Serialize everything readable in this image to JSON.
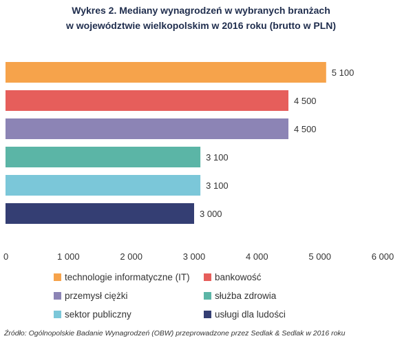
{
  "chart_data": {
    "type": "bar",
    "orientation": "horizontal",
    "title": "Wykres 2. Mediany wynagrodzeń w wybranych branżach",
    "subtitle": "w województwie wielkopolskim w 2016 roku (brutto w PLN)",
    "categories": [
      "technologie informatyczne (IT)",
      "bankowość",
      "przemysł ciężki",
      "służba zdrowia",
      "sektor publiczny",
      "usługi dla ludości"
    ],
    "values": [
      5100,
      4500,
      4500,
      3100,
      3100,
      3000
    ],
    "value_labels": [
      "5 100",
      "4 500",
      "4 500",
      "3 100",
      "3 100",
      "3 000"
    ],
    "colors": [
      "#F6A34B",
      "#E65E5B",
      "#8C84B5",
      "#5BB5A6",
      "#7BC7D9",
      "#343E73"
    ],
    "xlim": [
      0,
      6000
    ],
    "xticks": [
      0,
      1000,
      2000,
      3000,
      4000,
      5000,
      6000
    ],
    "xtick_labels": [
      "0",
      "1 000",
      "2 000",
      "3 000",
      "4 000",
      "5 000",
      "6 000"
    ],
    "grid": false,
    "legend_position": "bottom"
  },
  "source": "Źródło: Ogólnopolskie Badanie Wynagrodzeń (OBW) przeprowadzone przez Sedlak & Sedlak w 2016 roku"
}
